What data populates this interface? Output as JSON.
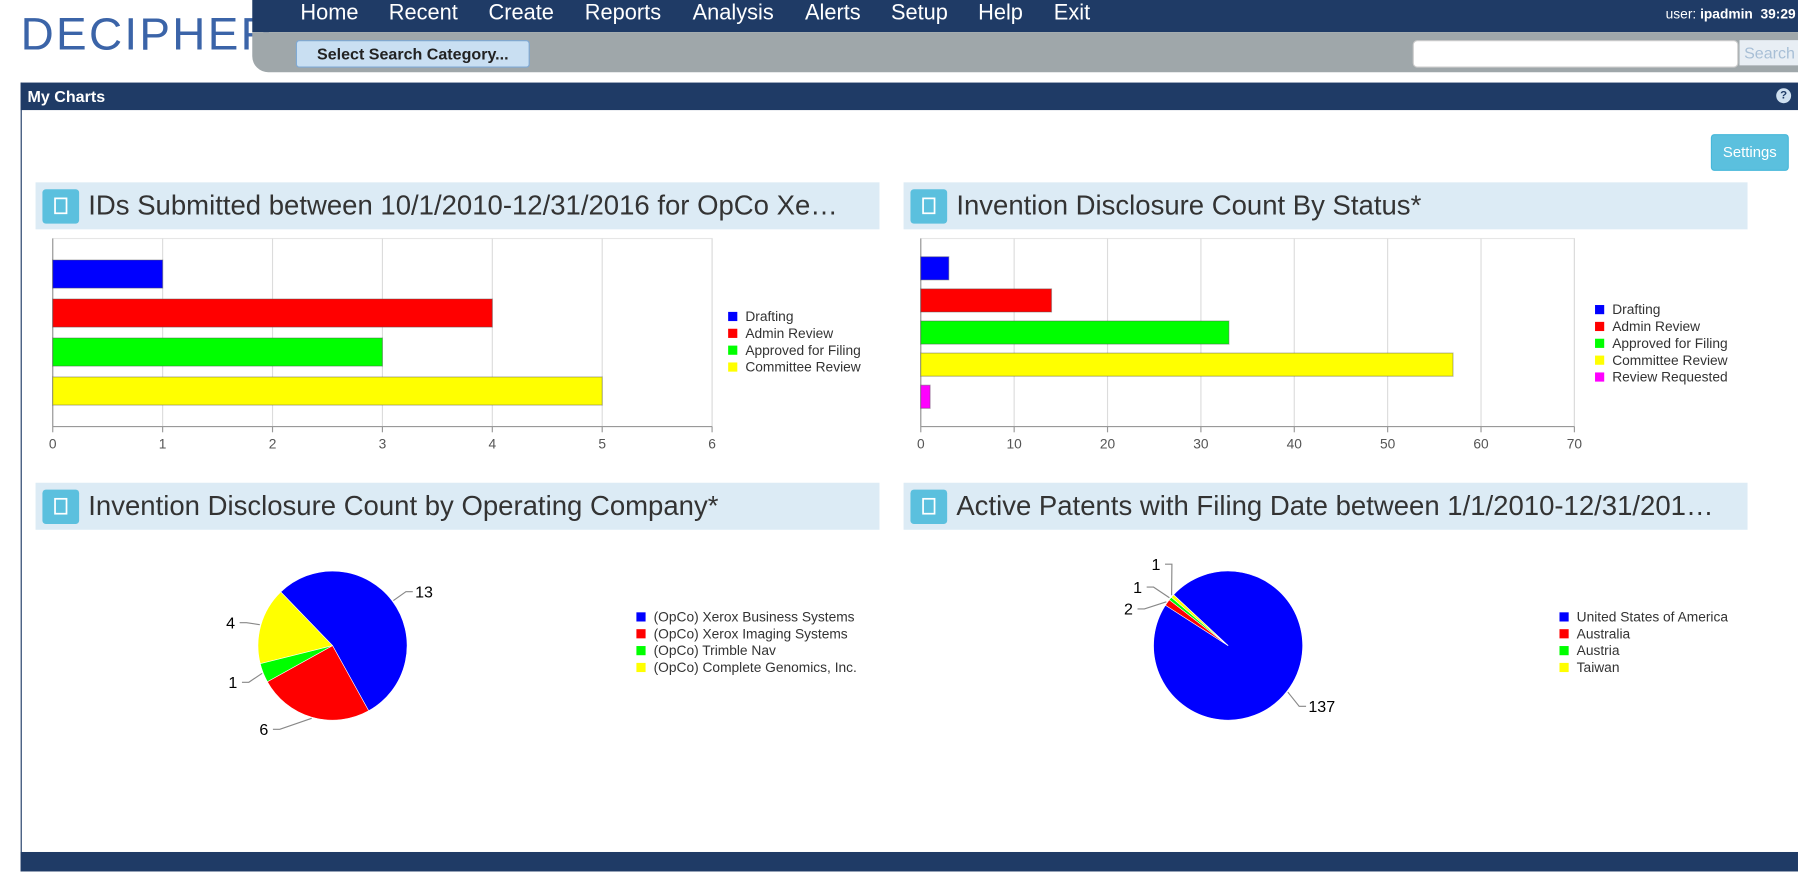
{
  "header": {
    "logo": "DECIPHER",
    "nav": [
      "Home",
      "Recent",
      "Create",
      "Reports",
      "Analysis",
      "Alerts",
      "Setup",
      "Help",
      "Exit"
    ],
    "user_label": "user:",
    "user": "ipadmin",
    "timer": "39:29",
    "category_button": "Select Search Category...",
    "search_button": "Search"
  },
  "panel": {
    "title": "My Charts",
    "help": "?",
    "settings": "Settings"
  },
  "chart_data": [
    {
      "type": "bar",
      "title": "IDs Submitted between 10/1/2010-12/31/2016 for OpCo Xe…",
      "categories": [
        "Drafting",
        "Admin Review",
        "Approved for Filing",
        "Committee Review"
      ],
      "values": [
        1,
        4,
        3,
        5
      ],
      "colors": [
        "#0000ff",
        "#ff0000",
        "#00ff00",
        "#ffff00"
      ],
      "xlim": [
        0,
        6
      ],
      "xticks": [
        0,
        1,
        2,
        3,
        4,
        5,
        6
      ],
      "grid": true
    },
    {
      "type": "bar",
      "title": "Invention Disclosure Count By Status*",
      "categories": [
        "Drafting",
        "Admin Review",
        "Approved for Filing",
        "Committee Review",
        "Review Requested"
      ],
      "values": [
        3,
        14,
        33,
        57,
        1
      ],
      "colors": [
        "#0000ff",
        "#ff0000",
        "#00ff00",
        "#ffff00",
        "#ff00ff"
      ],
      "xlim": [
        0,
        70
      ],
      "xticks": [
        0,
        10,
        20,
        30,
        40,
        50,
        60,
        70
      ],
      "grid": true
    },
    {
      "type": "pie",
      "title": "Invention Disclosure Count by Operating Company*",
      "categories": [
        "(OpCo) Xerox Business Systems",
        "(OpCo) Xerox Imaging Systems",
        "(OpCo) Trimble Nav",
        "(OpCo) Complete Genomics, Inc."
      ],
      "values": [
        13,
        6,
        1,
        4
      ],
      "colors": [
        "#0000ff",
        "#ff0000",
        "#00ff00",
        "#ffff00"
      ]
    },
    {
      "type": "pie",
      "title": "Active Patents with Filing Date between 1/1/2010-12/31/201…",
      "categories": [
        "United States of America",
        "Australia",
        "Austria",
        "Taiwan"
      ],
      "values": [
        137,
        2,
        1,
        1
      ],
      "colors": [
        "#0000ff",
        "#ff0000",
        "#00ff00",
        "#ffff00"
      ]
    }
  ]
}
